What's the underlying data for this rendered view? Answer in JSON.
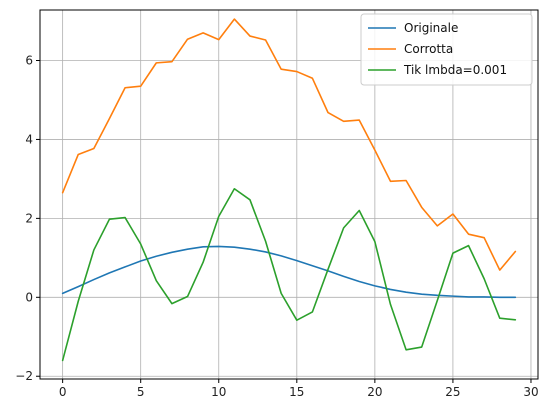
{
  "chart_data": {
    "type": "line",
    "title": "",
    "xlabel": "",
    "ylabel": "",
    "xlim": [
      -1.45,
      30.45
    ],
    "ylim": [
      -2.07,
      7.28
    ],
    "x_ticks": [
      0,
      5,
      10,
      15,
      20,
      25,
      30
    ],
    "y_ticks": [
      -2,
      0,
      2,
      4,
      6
    ],
    "grid": true,
    "legend_position": "top-right",
    "x": [
      0,
      1,
      2,
      3,
      4,
      5,
      6,
      7,
      8,
      9,
      10,
      11,
      12,
      13,
      14,
      15,
      16,
      17,
      18,
      19,
      20,
      21,
      22,
      23,
      24,
      25,
      26,
      27,
      28,
      29
    ],
    "series": [
      {
        "name": "Originale",
        "color": "#1f77b4",
        "values": [
          0.1,
          0.27,
          0.45,
          0.62,
          0.77,
          0.92,
          1.04,
          1.14,
          1.22,
          1.28,
          1.29,
          1.27,
          1.22,
          1.15,
          1.05,
          0.93,
          0.8,
          0.67,
          0.53,
          0.4,
          0.29,
          0.2,
          0.13,
          0.08,
          0.05,
          0.03,
          0.01,
          0.01,
          0.0,
          0.0
        ]
      },
      {
        "name": "Corrotta",
        "color": "#ff7f0e",
        "values": [
          2.65,
          3.62,
          3.77,
          4.53,
          5.31,
          5.35,
          5.94,
          5.97,
          6.54,
          6.7,
          6.53,
          7.05,
          6.62,
          6.52,
          5.78,
          5.72,
          5.55,
          4.68,
          4.46,
          4.49,
          3.73,
          2.94,
          2.96,
          2.28,
          1.81,
          2.11,
          1.6,
          1.51,
          0.69,
          1.16
        ]
      },
      {
        "name": "Tik lmbda=0.001",
        "color": "#2ca02c",
        "values": [
          -1.6,
          -0.1,
          1.2,
          1.98,
          2.02,
          1.35,
          0.42,
          -0.16,
          0.02,
          0.89,
          2.05,
          2.75,
          2.47,
          1.42,
          0.1,
          -0.58,
          -0.37,
          0.71,
          1.76,
          2.2,
          1.41,
          -0.18,
          -1.33,
          -1.26,
          -0.08,
          1.12,
          1.31,
          0.47,
          -0.53,
          -0.57
        ]
      }
    ]
  }
}
